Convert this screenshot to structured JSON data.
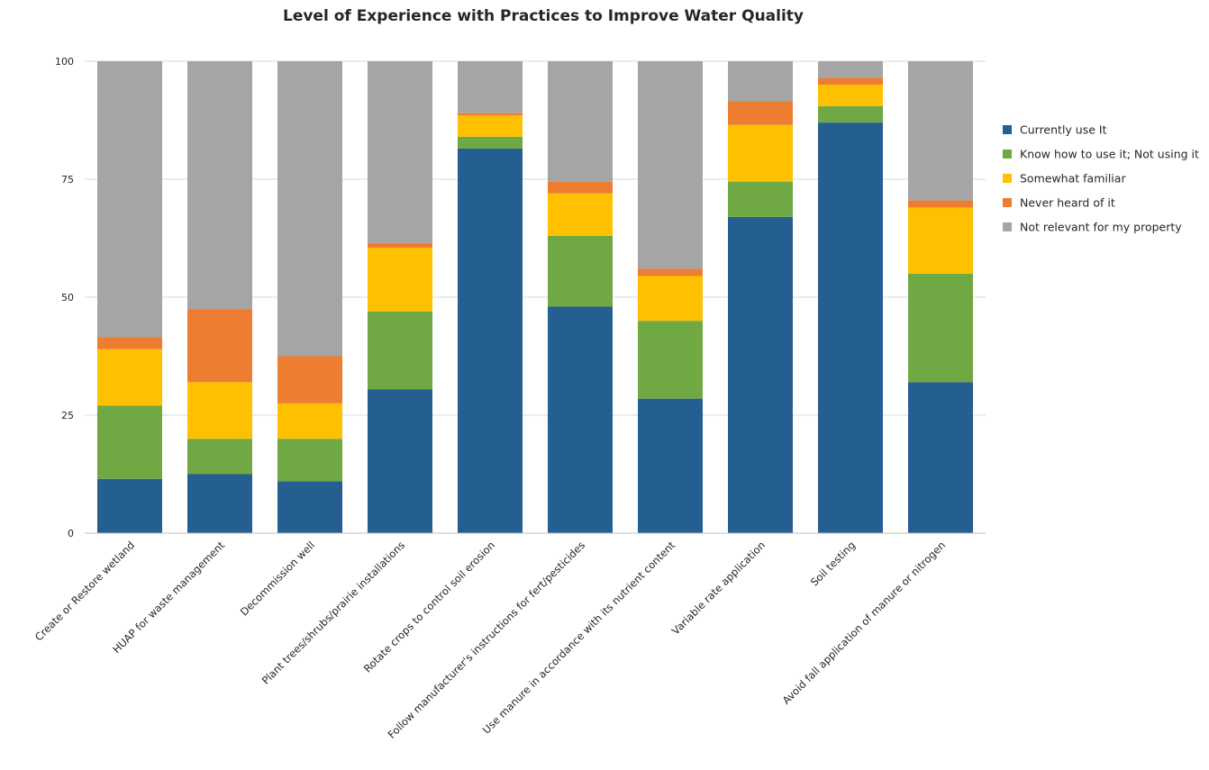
{
  "chart_data": {
    "type": "bar",
    "stacked": true,
    "title": "Level of Experience with Practices to Improve Water Quality",
    "xlabel": "",
    "ylabel": "",
    "ylim": [
      0,
      100
    ],
    "yticks": [
      0,
      25,
      50,
      75,
      100
    ],
    "grid": true,
    "legend_position": "right",
    "categories": [
      "Create or Restore wetland",
      "HUAP for waste management",
      "Decommission well",
      "Plant trees/shrubs/prairie installations",
      "Rotate crops to control soil erosion",
      "Follow manufacturer's instructions for fert/pesticides",
      "Use manure in accordance with its nutrient content",
      "Variable rate application",
      "Soil testing",
      "Avoid fall application of manure or nitrogen"
    ],
    "series": [
      {
        "name": "Currently use It",
        "color": "#255E91",
        "values": [
          11.5,
          12.5,
          11,
          30.5,
          81.5,
          48,
          28.5,
          67,
          87,
          32
        ]
      },
      {
        "name": "Know how to use it; Not using it",
        "color": "#70A844",
        "values": [
          15.5,
          7.5,
          9,
          16.5,
          2.5,
          15,
          16.5,
          7.5,
          3.5,
          23
        ]
      },
      {
        "name": "Somewhat familiar",
        "color": "#FFC000",
        "values": [
          12,
          12,
          7.5,
          13.5,
          4.5,
          9,
          9.5,
          12,
          4.5,
          14
        ]
      },
      {
        "name": "Never heard of it",
        "color": "#ED7D31",
        "values": [
          2.5,
          15.5,
          10,
          1,
          0.5,
          2.5,
          1.5,
          5,
          1.5,
          1.5
        ]
      },
      {
        "name": "Not relevant for my property",
        "color": "#A5A5A5",
        "values": [
          58.5,
          52.5,
          62.5,
          38.5,
          11,
          25.5,
          44,
          8.5,
          3.5,
          29.5
        ]
      }
    ]
  }
}
